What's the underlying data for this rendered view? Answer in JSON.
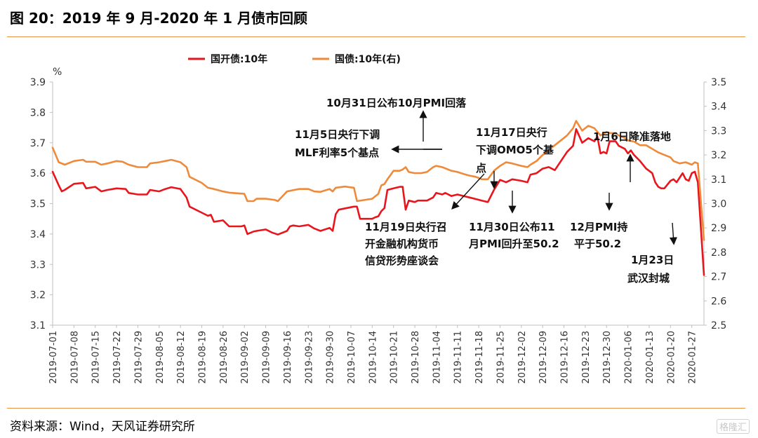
{
  "figure": {
    "title": "图 20：2019 年 9 月-2020 年 1 月债市回顾",
    "source": "资料来源：Wind，天风证券研究所",
    "watermark": "格隆汇"
  },
  "colors": {
    "cdb": "#e8161c",
    "gov": "#ee8a3a",
    "rule": "#e6964a"
  },
  "chart_data": {
    "type": "line",
    "title": "",
    "xlabel": "",
    "ylabel": "%",
    "ylim": [
      3.1,
      3.9
    ],
    "y2lim": [
      2.5,
      3.5
    ],
    "yticks": [
      "3.1",
      "3.2",
      "3.3",
      "3.4",
      "3.5",
      "3.6",
      "3.7",
      "3.8",
      "3.9"
    ],
    "y2ticks": [
      "2.5",
      "2.6",
      "2.7",
      "2.8",
      "2.9",
      "3.0",
      "3.1",
      "3.2",
      "3.3",
      "3.4",
      "3.5"
    ],
    "x_range": [
      "2019-07-01",
      "2020-01-31"
    ],
    "x_ticks": [
      "2019-07-01",
      "2019-07-08",
      "2019-07-15",
      "2019-07-22",
      "2019-07-29",
      "2019-08-05",
      "2019-08-12",
      "2019-08-19",
      "2019-08-26",
      "2019-09-02",
      "2019-09-09",
      "2019-09-16",
      "2019-09-23",
      "2019-09-30",
      "2019-10-07",
      "2019-10-14",
      "2019-10-21",
      "2019-10-28",
      "2019-11-04",
      "2019-11-11",
      "2019-11-18",
      "2019-11-25",
      "2019-12-02",
      "2019-12-09",
      "2019-12-16",
      "2019-12-23",
      "2019-12-30",
      "2020-01-06",
      "2020-01-13",
      "2020-01-20",
      "2020-01-27"
    ],
    "legend_position": "top",
    "series": [
      {
        "name": "国开债:10年",
        "axis": "left",
        "color": "#e8161c",
        "points": [
          [
            "2019-07-01",
            3.605
          ],
          [
            "2019-07-03",
            3.56
          ],
          [
            "2019-07-04",
            3.54
          ],
          [
            "2019-07-05",
            3.545
          ],
          [
            "2019-07-08",
            3.565
          ],
          [
            "2019-07-11",
            3.568
          ],
          [
            "2019-07-12",
            3.55
          ],
          [
            "2019-07-15",
            3.555
          ],
          [
            "2019-07-17",
            3.54
          ],
          [
            "2019-07-19",
            3.545
          ],
          [
            "2019-07-22",
            3.55
          ],
          [
            "2019-07-25",
            3.548
          ],
          [
            "2019-07-26",
            3.535
          ],
          [
            "2019-07-29",
            3.53
          ],
          [
            "2019-08-01",
            3.53
          ],
          [
            "2019-08-02",
            3.545
          ],
          [
            "2019-08-05",
            3.54
          ],
          [
            "2019-08-07",
            3.548
          ],
          [
            "2019-08-09",
            3.554
          ],
          [
            "2019-08-12",
            3.548
          ],
          [
            "2019-08-14",
            3.52
          ],
          [
            "2019-08-15",
            3.49
          ],
          [
            "2019-08-19",
            3.47
          ],
          [
            "2019-08-21",
            3.46
          ],
          [
            "2019-08-22",
            3.463
          ],
          [
            "2019-08-23",
            3.44
          ],
          [
            "2019-08-26",
            3.445
          ],
          [
            "2019-08-28",
            3.425
          ],
          [
            "2019-09-01",
            3.425
          ],
          [
            "2019-09-02",
            3.428
          ],
          [
            "2019-09-03",
            3.4
          ],
          [
            "2019-09-05",
            3.408
          ],
          [
            "2019-09-06",
            3.41
          ],
          [
            "2019-09-09",
            3.415
          ],
          [
            "2019-09-11",
            3.405
          ],
          [
            "2019-09-13",
            3.398
          ],
          [
            "2019-09-16",
            3.41
          ],
          [
            "2019-09-17",
            3.425
          ],
          [
            "2019-09-18",
            3.428
          ],
          [
            "2019-09-20",
            3.425
          ],
          [
            "2019-09-23",
            3.43
          ],
          [
            "2019-09-25",
            3.418
          ],
          [
            "2019-09-27",
            3.41
          ],
          [
            "2019-09-30",
            3.42
          ],
          [
            "2019-10-01",
            3.41
          ],
          [
            "2019-10-02",
            3.465
          ],
          [
            "2019-10-03",
            3.48
          ],
          [
            "2019-10-07",
            3.488
          ],
          [
            "2019-10-08",
            3.49
          ],
          [
            "2019-10-09",
            3.49
          ],
          [
            "2019-10-10",
            3.45
          ],
          [
            "2019-10-14",
            3.45
          ],
          [
            "2019-10-15",
            3.455
          ],
          [
            "2019-10-16",
            3.458
          ],
          [
            "2019-10-17",
            3.475
          ],
          [
            "2019-10-18",
            3.485
          ],
          [
            "2019-10-19",
            3.545
          ],
          [
            "2019-10-21",
            3.55
          ],
          [
            "2019-10-23",
            3.555
          ],
          [
            "2019-10-24",
            3.555
          ],
          [
            "2019-10-25",
            3.48
          ],
          [
            "2019-10-26",
            3.51
          ],
          [
            "2019-10-28",
            3.505
          ],
          [
            "2019-10-29",
            3.51
          ],
          [
            "2019-10-30",
            3.51
          ],
          [
            "2019-11-01",
            3.51
          ],
          [
            "2019-11-03",
            3.52
          ],
          [
            "2019-11-04",
            3.535
          ],
          [
            "2019-11-06",
            3.53
          ],
          [
            "2019-11-07",
            3.535
          ],
          [
            "2019-11-09",
            3.525
          ],
          [
            "2019-11-11",
            3.53
          ],
          [
            "2019-11-13",
            3.525
          ],
          [
            "2019-11-15",
            3.52
          ],
          [
            "2019-11-17",
            3.515
          ],
          [
            "2019-11-19",
            3.51
          ],
          [
            "2019-11-21",
            3.505
          ],
          [
            "2019-11-23",
            3.545
          ],
          [
            "2019-11-25",
            3.578
          ],
          [
            "2019-11-27",
            3.57
          ],
          [
            "2019-11-29",
            3.58
          ],
          [
            "2019-12-02",
            3.575
          ],
          [
            "2019-12-04",
            3.57
          ],
          [
            "2019-12-05",
            3.595
          ],
          [
            "2019-12-07",
            3.6
          ],
          [
            "2019-12-09",
            3.615
          ],
          [
            "2019-12-11",
            3.62
          ],
          [
            "2019-12-13",
            3.61
          ],
          [
            "2019-12-15",
            3.64
          ],
          [
            "2019-12-17",
            3.67
          ],
          [
            "2019-12-19",
            3.69
          ],
          [
            "2019-12-20",
            3.745
          ],
          [
            "2019-12-22",
            3.7
          ],
          [
            "2019-12-24",
            3.715
          ],
          [
            "2019-12-26",
            3.705
          ],
          [
            "2019-12-27",
            3.72
          ],
          [
            "2019-12-28",
            3.665
          ],
          [
            "2019-12-29",
            3.67
          ],
          [
            "2019-12-30",
            3.665
          ],
          [
            "2019-12-31",
            3.705
          ],
          [
            "2020-01-01",
            3.705
          ],
          [
            "2020-01-02",
            3.705
          ],
          [
            "2020-01-03",
            3.69
          ],
          [
            "2020-01-05",
            3.68
          ],
          [
            "2020-01-06",
            3.665
          ],
          [
            "2020-01-07",
            3.675
          ],
          [
            "2020-01-08",
            3.66
          ],
          [
            "2020-01-10",
            3.64
          ],
          [
            "2020-01-12",
            3.615
          ],
          [
            "2020-01-14",
            3.6
          ],
          [
            "2020-01-15",
            3.57
          ],
          [
            "2020-01-16",
            3.555
          ],
          [
            "2020-01-17",
            3.55
          ],
          [
            "2020-01-18",
            3.55
          ],
          [
            "2020-01-20",
            3.575
          ],
          [
            "2020-01-21",
            3.58
          ],
          [
            "2020-01-22",
            3.57
          ],
          [
            "2020-01-23",
            3.585
          ],
          [
            "2020-01-24",
            3.6
          ],
          [
            "2020-01-25",
            3.58
          ],
          [
            "2020-01-26",
            3.575
          ],
          [
            "2020-01-27",
            3.6
          ],
          [
            "2020-01-28",
            3.605
          ],
          [
            "2020-01-29",
            3.57
          ],
          [
            "2020-01-31",
            3.265
          ]
        ]
      },
      {
        "name": "国债:10年(右)",
        "axis": "right",
        "color": "#ee8a3a",
        "points": [
          [
            "2019-07-01",
            3.23
          ],
          [
            "2019-07-03",
            3.17
          ],
          [
            "2019-07-05",
            3.16
          ],
          [
            "2019-07-08",
            3.175
          ],
          [
            "2019-07-11",
            3.18
          ],
          [
            "2019-07-12",
            3.172
          ],
          [
            "2019-07-15",
            3.172
          ],
          [
            "2019-07-17",
            3.16
          ],
          [
            "2019-07-19",
            3.165
          ],
          [
            "2019-07-22",
            3.175
          ],
          [
            "2019-07-24",
            3.172
          ],
          [
            "2019-07-26",
            3.16
          ],
          [
            "2019-07-29",
            3.15
          ],
          [
            "2019-08-01",
            3.15
          ],
          [
            "2019-08-02",
            3.165
          ],
          [
            "2019-08-05",
            3.17
          ],
          [
            "2019-08-07",
            3.175
          ],
          [
            "2019-08-09",
            3.18
          ],
          [
            "2019-08-12",
            3.17
          ],
          [
            "2019-08-14",
            3.15
          ],
          [
            "2019-08-15",
            3.11
          ],
          [
            "2019-08-19",
            3.085
          ],
          [
            "2019-08-21",
            3.065
          ],
          [
            "2019-08-23",
            3.06
          ],
          [
            "2019-08-26",
            3.05
          ],
          [
            "2019-08-28",
            3.045
          ],
          [
            "2019-09-02",
            3.04
          ],
          [
            "2019-09-03",
            3.01
          ],
          [
            "2019-09-05",
            3.01
          ],
          [
            "2019-09-06",
            3.02
          ],
          [
            "2019-09-09",
            3.02
          ],
          [
            "2019-09-12",
            3.015
          ],
          [
            "2019-09-13",
            3.01
          ],
          [
            "2019-09-16",
            3.05
          ],
          [
            "2019-09-18",
            3.055
          ],
          [
            "2019-09-20",
            3.06
          ],
          [
            "2019-09-23",
            3.06
          ],
          [
            "2019-09-25",
            3.05
          ],
          [
            "2019-09-27",
            3.048
          ],
          [
            "2019-09-30",
            3.06
          ],
          [
            "2019-10-01",
            3.05
          ],
          [
            "2019-10-02",
            3.065
          ],
          [
            "2019-10-05",
            3.07
          ],
          [
            "2019-10-08",
            3.065
          ],
          [
            "2019-10-09",
            3.01
          ],
          [
            "2019-10-14",
            3.02
          ],
          [
            "2019-10-16",
            3.04
          ],
          [
            "2019-10-17",
            3.075
          ],
          [
            "2019-10-18",
            3.08
          ],
          [
            "2019-10-19",
            3.1
          ],
          [
            "2019-10-21",
            3.135
          ],
          [
            "2019-10-23",
            3.135
          ],
          [
            "2019-10-24",
            3.14
          ],
          [
            "2019-10-25",
            3.15
          ],
          [
            "2019-10-26",
            3.13
          ],
          [
            "2019-10-28",
            3.125
          ],
          [
            "2019-10-30",
            3.125
          ],
          [
            "2019-11-01",
            3.13
          ],
          [
            "2019-11-03",
            3.15
          ],
          [
            "2019-11-04",
            3.155
          ],
          [
            "2019-11-06",
            3.15
          ],
          [
            "2019-11-07",
            3.145
          ],
          [
            "2019-11-09",
            3.135
          ],
          [
            "2019-11-11",
            3.13
          ],
          [
            "2019-11-13",
            3.122
          ],
          [
            "2019-11-15",
            3.115
          ],
          [
            "2019-11-17",
            3.11
          ],
          [
            "2019-11-19",
            3.1
          ],
          [
            "2019-11-21",
            3.1
          ],
          [
            "2019-11-23",
            3.135
          ],
          [
            "2019-11-25",
            3.155
          ],
          [
            "2019-11-27",
            3.17
          ],
          [
            "2019-11-29",
            3.165
          ],
          [
            "2019-12-02",
            3.155
          ],
          [
            "2019-12-04",
            3.15
          ],
          [
            "2019-12-05",
            3.16
          ],
          [
            "2019-12-07",
            3.175
          ],
          [
            "2019-12-09",
            3.2
          ],
          [
            "2019-12-11",
            3.22
          ],
          [
            "2019-12-13",
            3.24
          ],
          [
            "2019-12-15",
            3.26
          ],
          [
            "2019-12-17",
            3.28
          ],
          [
            "2019-12-19",
            3.31
          ],
          [
            "2019-12-20",
            3.34
          ],
          [
            "2019-12-22",
            3.3
          ],
          [
            "2019-12-24",
            3.32
          ],
          [
            "2019-12-26",
            3.31
          ],
          [
            "2019-12-28",
            3.28
          ],
          [
            "2019-12-30",
            3.295
          ],
          [
            "2019-12-31",
            3.29
          ],
          [
            "2020-01-02",
            3.29
          ],
          [
            "2020-01-03",
            3.28
          ],
          [
            "2020-01-05",
            3.27
          ],
          [
            "2020-01-06",
            3.26
          ],
          [
            "2020-01-08",
            3.255
          ],
          [
            "2020-01-10",
            3.24
          ],
          [
            "2020-01-12",
            3.24
          ],
          [
            "2020-01-14",
            3.225
          ],
          [
            "2020-01-16",
            3.21
          ],
          [
            "2020-01-18",
            3.2
          ],
          [
            "2020-01-20",
            3.19
          ],
          [
            "2020-01-21",
            3.175
          ],
          [
            "2020-01-23",
            3.165
          ],
          [
            "2020-01-25",
            3.17
          ],
          [
            "2020-01-27",
            3.16
          ],
          [
            "2020-01-28",
            3.17
          ],
          [
            "2020-01-29",
            3.165
          ],
          [
            "2020-01-31",
            2.85
          ]
        ]
      }
    ],
    "annotations": [
      {
        "text": "10月31日公布10月PMI回落",
        "date": "2019-10-31"
      },
      {
        "text": "11月5日央行下调",
        "date": "2019-11-05"
      },
      {
        "text": "MLF利率5个基点",
        "date": "2019-11-05"
      },
      {
        "text": "11月17日央行",
        "date": "2019-11-17"
      },
      {
        "text": "下调OMO5个基",
        "date": "2019-11-17"
      },
      {
        "text": "点",
        "date": "2019-11-17"
      },
      {
        "text": "1月6日降准落地",
        "date": "2020-01-06"
      },
      {
        "text": "11月19日央行召",
        "date": "2019-11-19"
      },
      {
        "text": "开金融机构货币",
        "date": "2019-11-19"
      },
      {
        "text": "信贷形势座谈会",
        "date": "2019-11-19"
      },
      {
        "text": "11月30日公布11",
        "date": "2019-11-30"
      },
      {
        "text": "月PMI回升至50.2",
        "date": "2019-11-30"
      },
      {
        "text": "12月PMI持",
        "date": "2019-12-31"
      },
      {
        "text": "平于50.2",
        "date": "2019-12-31"
      },
      {
        "text": "1月23日",
        "date": "2020-01-23"
      },
      {
        "text": "武汉封城",
        "date": "2020-01-23"
      }
    ]
  }
}
